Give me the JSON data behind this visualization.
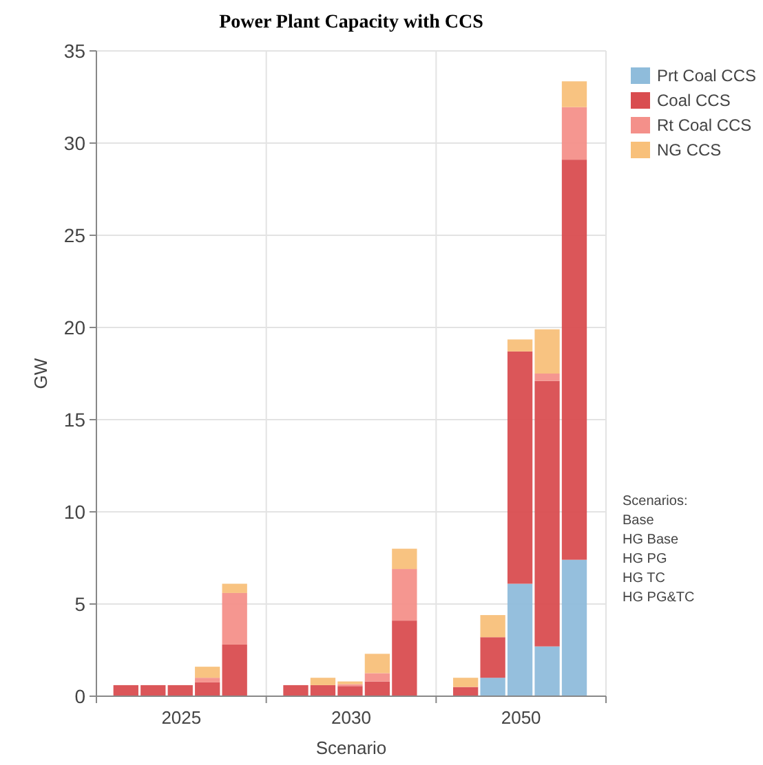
{
  "chart_data": {
    "type": "bar",
    "title": "Power Plant Capacity with CCS",
    "xlabel": "Scenario",
    "ylabel": "GW",
    "stacked": true,
    "categories": [
      null,
      null,
      "2025",
      null,
      null,
      null,
      null,
      "2030",
      null,
      null,
      null,
      null,
      "2050",
      null,
      null
    ],
    "series": [
      {
        "name": "Prt Coal CCS",
        "color": "#8fbcdb",
        "values": [
          0,
          0,
          0,
          0,
          0,
          0,
          0,
          0,
          0,
          0,
          0,
          1.0,
          6.1,
          2.7,
          7.4
        ]
      },
      {
        "name": "Coal CCS",
        "color": "#d94d50",
        "values": [
          0.6,
          0.6,
          0.6,
          0.75,
          2.8,
          0.6,
          0.6,
          0.55,
          0.8,
          4.1,
          0.5,
          2.2,
          12.6,
          14.4,
          21.7
        ]
      },
      {
        "name": "Rt Coal CCS",
        "color": "#f4908a",
        "values": [
          0,
          0,
          0,
          0.25,
          2.8,
          0,
          0,
          0.1,
          0.45,
          2.8,
          0,
          0,
          0,
          0.4,
          2.85
        ]
      },
      {
        "name": "NG CCS",
        "color": "#f8c07a",
        "values": [
          0,
          0,
          0,
          0.6,
          0.5,
          0,
          0.4,
          0.15,
          1.05,
          1.1,
          0.5,
          1.2,
          0.65,
          2.4,
          1.4
        ]
      }
    ],
    "ylim": [
      0,
      35
    ],
    "yticks": [
      0,
      5,
      10,
      15,
      20,
      25,
      30,
      35
    ],
    "grid": true,
    "legend": "top right",
    "annotations": [
      "Scenarios:",
      "Base",
      "HG Base",
      "HG PG",
      "HG TC",
      "HG PG&TC"
    ]
  }
}
